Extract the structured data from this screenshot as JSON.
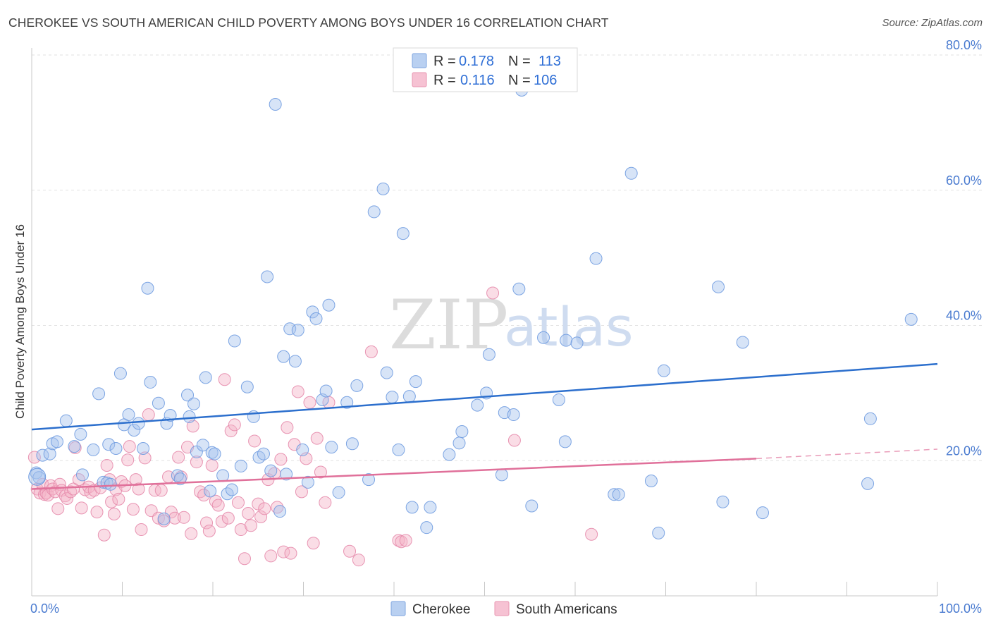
{
  "title": "CHEROKEE VS SOUTH AMERICAN CHILD POVERTY AMONG BOYS UNDER 16 CORRELATION CHART",
  "source": "Source: ZipAtlas.com",
  "watermark": {
    "zip": "ZIP",
    "atlas": "atlas"
  },
  "colors": {
    "cherokee": "#a7c4ee",
    "cherokee_line": "#2c6fcd",
    "south": "#f4b3c8",
    "south_line": "#e0709a",
    "tick": "#4a7bd0",
    "grid": "#e2e2e2"
  },
  "legend": {
    "rows": [
      {
        "r_label": "R = ",
        "r_value": "0.178",
        "n_label": "N = ",
        "n_value": "113"
      },
      {
        "r_label": "R = ",
        "r_value": "0.116",
        "n_label": "N = ",
        "n_value": "106"
      }
    ]
  },
  "chart_data": {
    "type": "scatter",
    "title": "CHEROKEE VS SOUTH AMERICAN CHILD POVERTY AMONG BOYS UNDER 16 CORRELATION CHART",
    "xlabel": "",
    "ylabel": "Child Poverty Among Boys Under 16",
    "xlim": [
      0,
      100
    ],
    "ylim": [
      0,
      80
    ],
    "x_tick_labels": [
      "0.0%",
      "100.0%"
    ],
    "y_ticks": [
      20,
      40,
      60,
      80
    ],
    "y_tick_labels": [
      "20.0%",
      "40.0%",
      "60.0%",
      "80.0%"
    ],
    "grid": true,
    "legend_position": "top-center",
    "series": [
      {
        "name": "Cherokee",
        "r": 0.178,
        "n": 113,
        "trend": {
          "x": [
            0,
            100
          ],
          "y": [
            24.6,
            34.3
          ]
        },
        "points": [
          [
            0.5,
            18.2
          ],
          [
            0.8,
            17.5
          ],
          [
            1.2,
            20.8
          ],
          [
            2,
            21
          ],
          [
            2.3,
            22.5
          ],
          [
            2.8,
            22.8
          ],
          [
            3.8,
            25.9
          ],
          [
            4.7,
            22.1
          ],
          [
            5.4,
            23.9
          ],
          [
            5.6,
            17.9
          ],
          [
            6.8,
            21.6
          ],
          [
            7.4,
            29.9
          ],
          [
            7.9,
            16.8
          ],
          [
            8.3,
            16.7
          ],
          [
            8.5,
            22.4
          ],
          [
            8.7,
            16.5
          ],
          [
            9.3,
            21.8
          ],
          [
            9.8,
            32.9
          ],
          [
            10.2,
            25.3
          ],
          [
            10.7,
            26.8
          ],
          [
            11.3,
            24.5
          ],
          [
            11.8,
            25.5
          ],
          [
            12.3,
            21.8
          ],
          [
            12.8,
            45.5
          ],
          [
            13.1,
            31.6
          ],
          [
            14,
            28.5
          ],
          [
            14.6,
            11.4
          ],
          [
            14.9,
            25.5
          ],
          [
            15.3,
            26.7
          ],
          [
            16.1,
            17.8
          ],
          [
            16.4,
            17.3
          ],
          [
            17.2,
            29.7
          ],
          [
            17.4,
            26.5
          ],
          [
            17.9,
            28.4
          ],
          [
            18.2,
            21.3
          ],
          [
            18.9,
            22.3
          ],
          [
            19.2,
            32.3
          ],
          [
            19.7,
            15.5
          ],
          [
            19.9,
            21.2
          ],
          [
            20.2,
            21
          ],
          [
            21.1,
            17.8
          ],
          [
            21.6,
            15.1
          ],
          [
            22.1,
            15.7
          ],
          [
            22.4,
            37.7
          ],
          [
            23.1,
            19.2
          ],
          [
            23.8,
            30.9
          ],
          [
            24.5,
            26.5
          ],
          [
            25.1,
            20.5
          ],
          [
            25.6,
            21
          ],
          [
            26,
            47.2
          ],
          [
            26.4,
            18.5
          ],
          [
            26.9,
            72.7
          ],
          [
            27.4,
            12.5
          ],
          [
            27.8,
            35.4
          ],
          [
            28.1,
            18
          ],
          [
            28.5,
            39.5
          ],
          [
            29.1,
            34.7
          ],
          [
            29.4,
            39.3
          ],
          [
            29.9,
            21.6
          ],
          [
            30.5,
            16.8
          ],
          [
            31,
            42
          ],
          [
            31.4,
            41
          ],
          [
            32.1,
            29
          ],
          [
            32.5,
            30.3
          ],
          [
            32.8,
            43
          ],
          [
            33.1,
            22
          ],
          [
            33.9,
            15.3
          ],
          [
            34.8,
            28.6
          ],
          [
            35.4,
            22.5
          ],
          [
            35.9,
            31.1
          ],
          [
            37.2,
            17.2
          ],
          [
            37.8,
            56.8
          ],
          [
            38.8,
            60.2
          ],
          [
            39.2,
            33
          ],
          [
            39.8,
            29.4
          ],
          [
            40.5,
            21.6
          ],
          [
            41,
            53.6
          ],
          [
            41.7,
            29.5
          ],
          [
            42,
            13.1
          ],
          [
            42.4,
            31.7
          ],
          [
            43.6,
            10.1
          ],
          [
            44,
            13.1
          ],
          [
            46.1,
            20.9
          ],
          [
            47.2,
            22.6
          ],
          [
            47.5,
            24.3
          ],
          [
            49.2,
            28.2
          ],
          [
            50.2,
            30
          ],
          [
            50.5,
            35.7
          ],
          [
            51.9,
            17.9
          ],
          [
            52.2,
            27.1
          ],
          [
            53.2,
            26.8
          ],
          [
            53.8,
            45.4
          ],
          [
            54.1,
            74.8
          ],
          [
            55.2,
            13.3
          ],
          [
            56.5,
            38.2
          ],
          [
            58.2,
            29
          ],
          [
            58.9,
            22.8
          ],
          [
            59,
            37.8
          ],
          [
            60.2,
            37.4
          ],
          [
            62.3,
            49.9
          ],
          [
            64.3,
            15
          ],
          [
            64.8,
            15
          ],
          [
            66.2,
            62.5
          ],
          [
            68.4,
            17
          ],
          [
            69.2,
            9.3
          ],
          [
            69.8,
            33.3
          ],
          [
            75.8,
            45.7
          ],
          [
            76.3,
            13.9
          ],
          [
            78.5,
            37.5
          ],
          [
            80.7,
            12.3
          ],
          [
            92.3,
            16.6
          ],
          [
            92.6,
            26.2
          ],
          [
            97.1,
            40.9
          ]
        ]
      },
      {
        "name": "South Americans",
        "r": 0.116,
        "n": 106,
        "trend": {
          "x": [
            0,
            80
          ],
          "y": [
            15.8,
            20.3
          ]
        },
        "trend_dashed": {
          "x": [
            80,
            100
          ],
          "y": [
            20.3,
            21.7
          ]
        },
        "points": [
          [
            0.3,
            20.5
          ],
          [
            0.6,
            15.8
          ],
          [
            0.9,
            15.2
          ],
          [
            1.2,
            16.5
          ],
          [
            1.4,
            15
          ],
          [
            1.6,
            15.2
          ],
          [
            1.8,
            14.9
          ],
          [
            2.1,
            16.3
          ],
          [
            2.3,
            15.8
          ],
          [
            2.6,
            15.4
          ],
          [
            2.9,
            12.9
          ],
          [
            3.1,
            16.5
          ],
          [
            3.3,
            15.6
          ],
          [
            3.7,
            14.8
          ],
          [
            3.9,
            14.4
          ],
          [
            4.3,
            15.4
          ],
          [
            4.6,
            15.8
          ],
          [
            4.8,
            21.9
          ],
          [
            5.2,
            17.2
          ],
          [
            5.5,
            13
          ],
          [
            5.9,
            15.7
          ],
          [
            6.3,
            16.1
          ],
          [
            6.5,
            15.3
          ],
          [
            6.9,
            15.6
          ],
          [
            7.2,
            12.4
          ],
          [
            7.6,
            16
          ],
          [
            8,
            9
          ],
          [
            8.3,
            19.3
          ],
          [
            8.6,
            17.2
          ],
          [
            8.8,
            13.9
          ],
          [
            9.1,
            12.1
          ],
          [
            9.3,
            15.7
          ],
          [
            9.6,
            14.3
          ],
          [
            9.9,
            16.9
          ],
          [
            10.3,
            16.3
          ],
          [
            10.6,
            20.1
          ],
          [
            10.8,
            22.1
          ],
          [
            11.2,
            12.8
          ],
          [
            11.5,
            17.2
          ],
          [
            11.8,
            15.8
          ],
          [
            12.1,
            9.8
          ],
          [
            12.5,
            20.4
          ],
          [
            12.9,
            26.8
          ],
          [
            13.2,
            12.6
          ],
          [
            13.6,
            15.6
          ],
          [
            14,
            11.5
          ],
          [
            14.3,
            15.6
          ],
          [
            14.6,
            11.1
          ],
          [
            15.1,
            17.6
          ],
          [
            15.4,
            12.4
          ],
          [
            15.8,
            11.5
          ],
          [
            16.2,
            20.5
          ],
          [
            16.5,
            17.6
          ],
          [
            16.8,
            11.6
          ],
          [
            17.2,
            22
          ],
          [
            17.6,
            9.2
          ],
          [
            17.8,
            25.1
          ],
          [
            18.2,
            19.8
          ],
          [
            18.6,
            15.4
          ],
          [
            19,
            14.9
          ],
          [
            19.3,
            10.8
          ],
          [
            19.6,
            9.6
          ],
          [
            19.9,
            19.3
          ],
          [
            20.3,
            14
          ],
          [
            20.6,
            13.4
          ],
          [
            21,
            11
          ],
          [
            21.3,
            32
          ],
          [
            21.7,
            11.5
          ],
          [
            22,
            24.4
          ],
          [
            22.4,
            25.3
          ],
          [
            22.8,
            13.8
          ],
          [
            23.1,
            9.8
          ],
          [
            23.5,
            5.5
          ],
          [
            23.9,
            12.2
          ],
          [
            24.2,
            10.4
          ],
          [
            24.6,
            22.9
          ],
          [
            25,
            13.6
          ],
          [
            25.3,
            11.7
          ],
          [
            25.7,
            12.9
          ],
          [
            26.1,
            17.2
          ],
          [
            26.4,
            5.9
          ],
          [
            26.8,
            18.1
          ],
          [
            27.1,
            13.1
          ],
          [
            27.5,
            20.2
          ],
          [
            27.8,
            6.5
          ],
          [
            28.2,
            24.9
          ],
          [
            28.6,
            6.3
          ],
          [
            29,
            22.4
          ],
          [
            29.4,
            30.2
          ],
          [
            29.8,
            15.4
          ],
          [
            30.3,
            20.3
          ],
          [
            30.7,
            28.6
          ],
          [
            31.1,
            7.8
          ],
          [
            31.5,
            23.3
          ],
          [
            31.9,
            18.3
          ],
          [
            32.4,
            13.8
          ],
          [
            32.8,
            28.6
          ],
          [
            35.1,
            6.6
          ],
          [
            36.1,
            5.3
          ],
          [
            37.5,
            36.1
          ],
          [
            40.5,
            8.2
          ],
          [
            40.8,
            8
          ],
          [
            41.3,
            8.2
          ],
          [
            50.9,
            44.8
          ],
          [
            53.3,
            23
          ],
          [
            61.8,
            9.1
          ]
        ]
      }
    ]
  },
  "bottom_legend": [
    "Cherokee",
    "South Americans"
  ]
}
